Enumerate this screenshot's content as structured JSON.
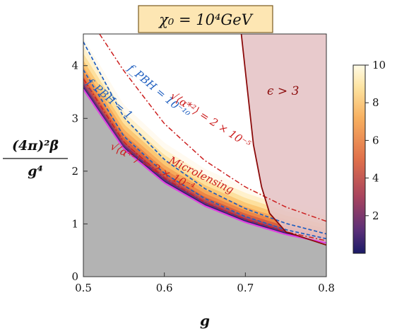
{
  "chart_data": {
    "type": "heatmap",
    "title": "χ₀ = 10⁴GeV",
    "xlabel": "g",
    "ylabel": "(4π)²β̄ / g⁴",
    "ylabel_numerator": "(4π)²β̄",
    "ylabel_denominator": "g⁴",
    "xlim": [
      0.5,
      0.8
    ],
    "ylim": [
      0,
      4.6
    ],
    "xticks": [
      "0.5",
      "0.6",
      "0.7",
      "0.8"
    ],
    "yticks": [
      "0",
      "1",
      "2",
      "3",
      "4"
    ],
    "colorbar": {
      "ticks": [
        "2",
        "4",
        "6",
        "8",
        "10"
      ],
      "range": [
        0,
        10
      ],
      "colors": [
        "#1a1a66",
        "#7a3a7a",
        "#c8504a",
        "#ee8a4a",
        "#fbc46a",
        "#fff8dc"
      ]
    },
    "annotations": {
      "epsilon": "ϵ > 3",
      "fpbh_small": "f_PBH = 10⁻¹⁰",
      "fpbh_one": "f_PBH = 1",
      "alpha_upper": "√⟨α*²⟩ = 2 × 10⁻⁵",
      "alpha_lower": "√⟨α*²⟩ = 2 × 10⁻⁴",
      "microlensing": "Microlensing"
    },
    "curves": {
      "lower_boundary_magenta": {
        "x": [
          0.5,
          0.55,
          0.6,
          0.65,
          0.7,
          0.75,
          0.8
        ],
        "y": [
          3.55,
          2.42,
          1.78,
          1.34,
          1.03,
          0.8,
          0.64
        ]
      },
      "fpbh_one_blue_dashed": {
        "x": [
          0.5,
          0.55,
          0.6,
          0.65,
          0.7,
          0.75,
          0.8
        ],
        "y": [
          3.92,
          2.66,
          1.96,
          1.48,
          1.14,
          0.89,
          0.72
        ]
      },
      "fpbh_small_blue_dashed": {
        "x": [
          0.5,
          0.55,
          0.6,
          0.65,
          0.7,
          0.75,
          0.8
        ],
        "y": [
          4.45,
          3.02,
          2.22,
          1.67,
          1.29,
          1.01,
          0.81
        ]
      },
      "alpha_lower_red_dashdot": {
        "x": [
          0.5,
          0.55,
          0.6,
          0.65,
          0.7,
          0.75,
          0.8
        ],
        "y": [
          3.75,
          2.55,
          1.87,
          1.41,
          1.09,
          0.85,
          0.68
        ]
      },
      "alpha_upper_red_dashdot": {
        "x": [
          0.52,
          0.55,
          0.6,
          0.65,
          0.7,
          0.75,
          0.8
        ],
        "y": [
          4.6,
          3.9,
          2.9,
          2.2,
          1.7,
          1.32,
          1.05
        ]
      },
      "epsilon_boundary_darkred": {
        "x": [
          0.695,
          0.7,
          0.71,
          0.72,
          0.73,
          0.75,
          0.8
        ],
        "y": [
          4.6,
          3.9,
          2.5,
          1.7,
          1.2,
          0.85,
          0.6
        ]
      }
    },
    "grid": false,
    "legend": "none"
  },
  "colors": {
    "excluded_gray": "#b3b3b3",
    "epsilon_region": "#e6c4c7",
    "epsilon_line": "#8b0a0a",
    "magenta": "#e040e0",
    "blue": "#1f5fc0",
    "red": "#cc1f1f",
    "title_bg": "#fde6b3"
  }
}
